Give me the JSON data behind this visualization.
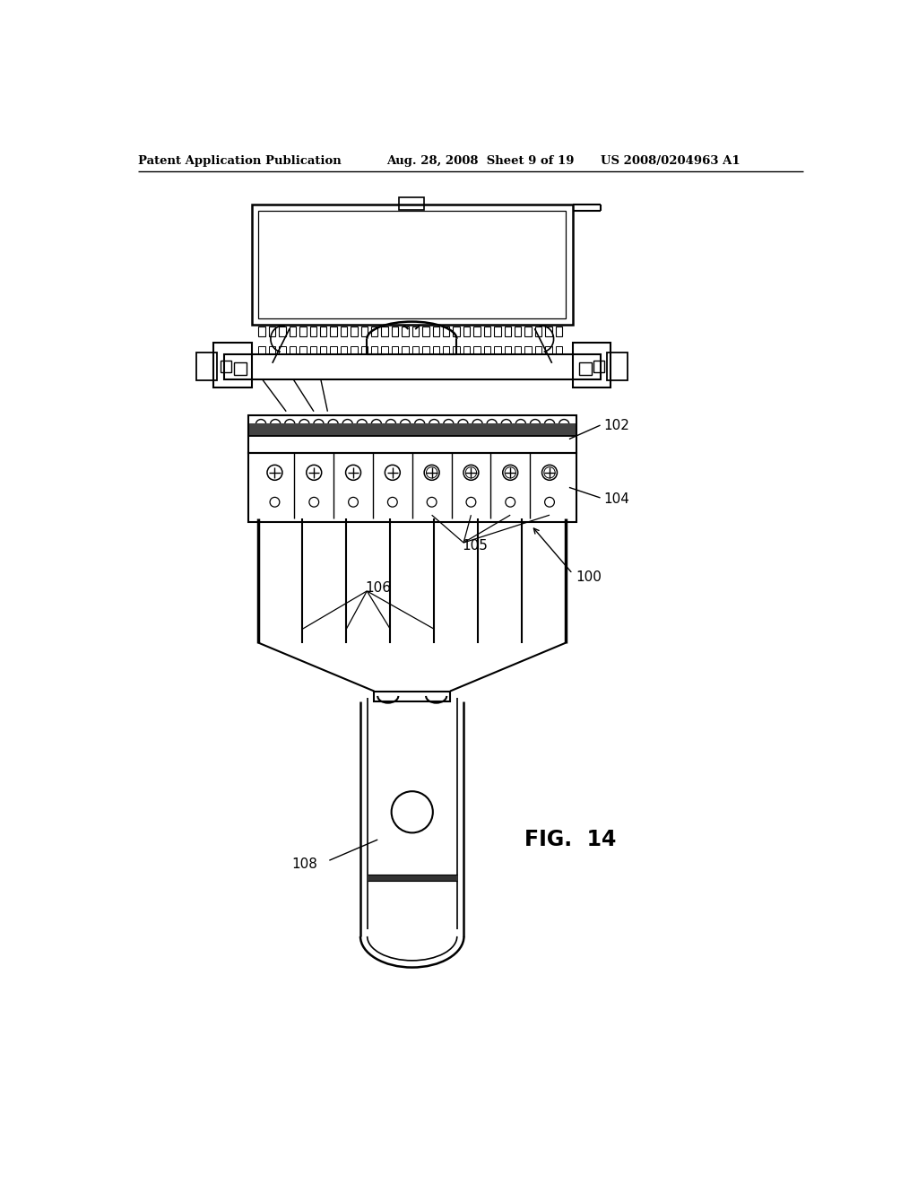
{
  "bg_color": "#ffffff",
  "line_color": "#000000",
  "header_left": "Patent Application Publication",
  "header_center": "Aug. 28, 2008  Sheet 9 of 19",
  "header_right": "US 2008/0204963 A1",
  "fig_label": "FIG.  14"
}
